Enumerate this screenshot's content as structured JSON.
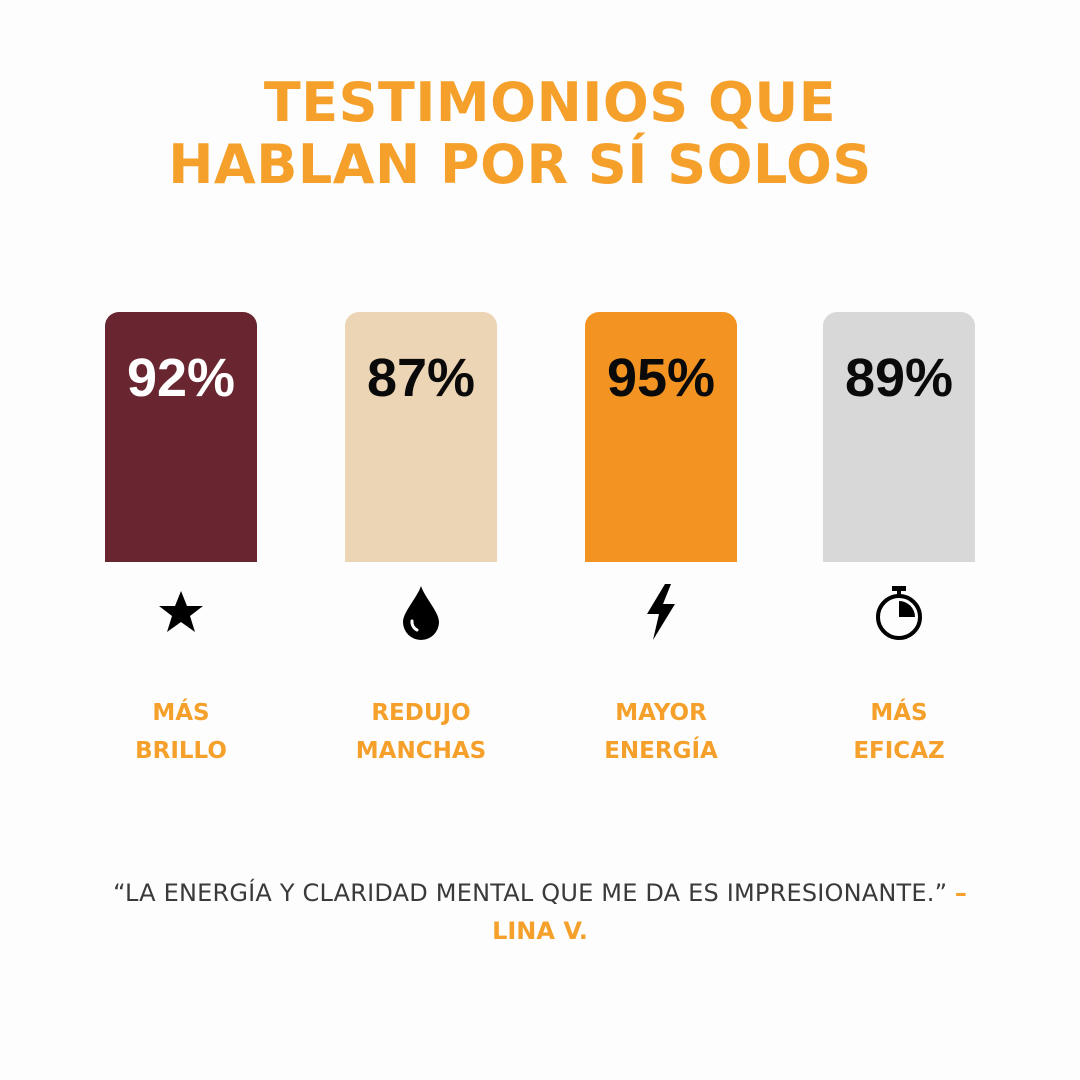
{
  "title": {
    "line1": "TESTIMONIOS QUE",
    "line2": "HABLAN POR SÍ SOLOS"
  },
  "stats": [
    {
      "value": "92%",
      "color": "#692631",
      "text_color": "#ffffff",
      "icon": "star-icon",
      "label": [
        "MÁS",
        "BRILLO"
      ]
    },
    {
      "value": "87%",
      "color": "#ecd5b4",
      "text_color": "#0a0a0a",
      "icon": "water-drop-icon",
      "label": [
        "REDUJO",
        "MANCHAS"
      ]
    },
    {
      "value": "95%",
      "color": "#f29322",
      "text_color": "#0a0a0a",
      "icon": "lightning-bolt-icon",
      "label": [
        "MAYOR",
        "ENERGÍA"
      ]
    },
    {
      "value": "89%",
      "color": "#d8d8d8",
      "text_color": "#0a0a0a",
      "icon": "stopwatch-icon",
      "label": [
        "MÁS",
        "EFICAZ"
      ]
    }
  ],
  "testimonial": {
    "quote": "“LA ENERGÍA Y CLARIDAD MENTAL QUE ME DA ES IMPRESIONANTE.”",
    "dash": "–",
    "author": "LINA V."
  },
  "colors": {
    "accent": "#f5a02a"
  }
}
